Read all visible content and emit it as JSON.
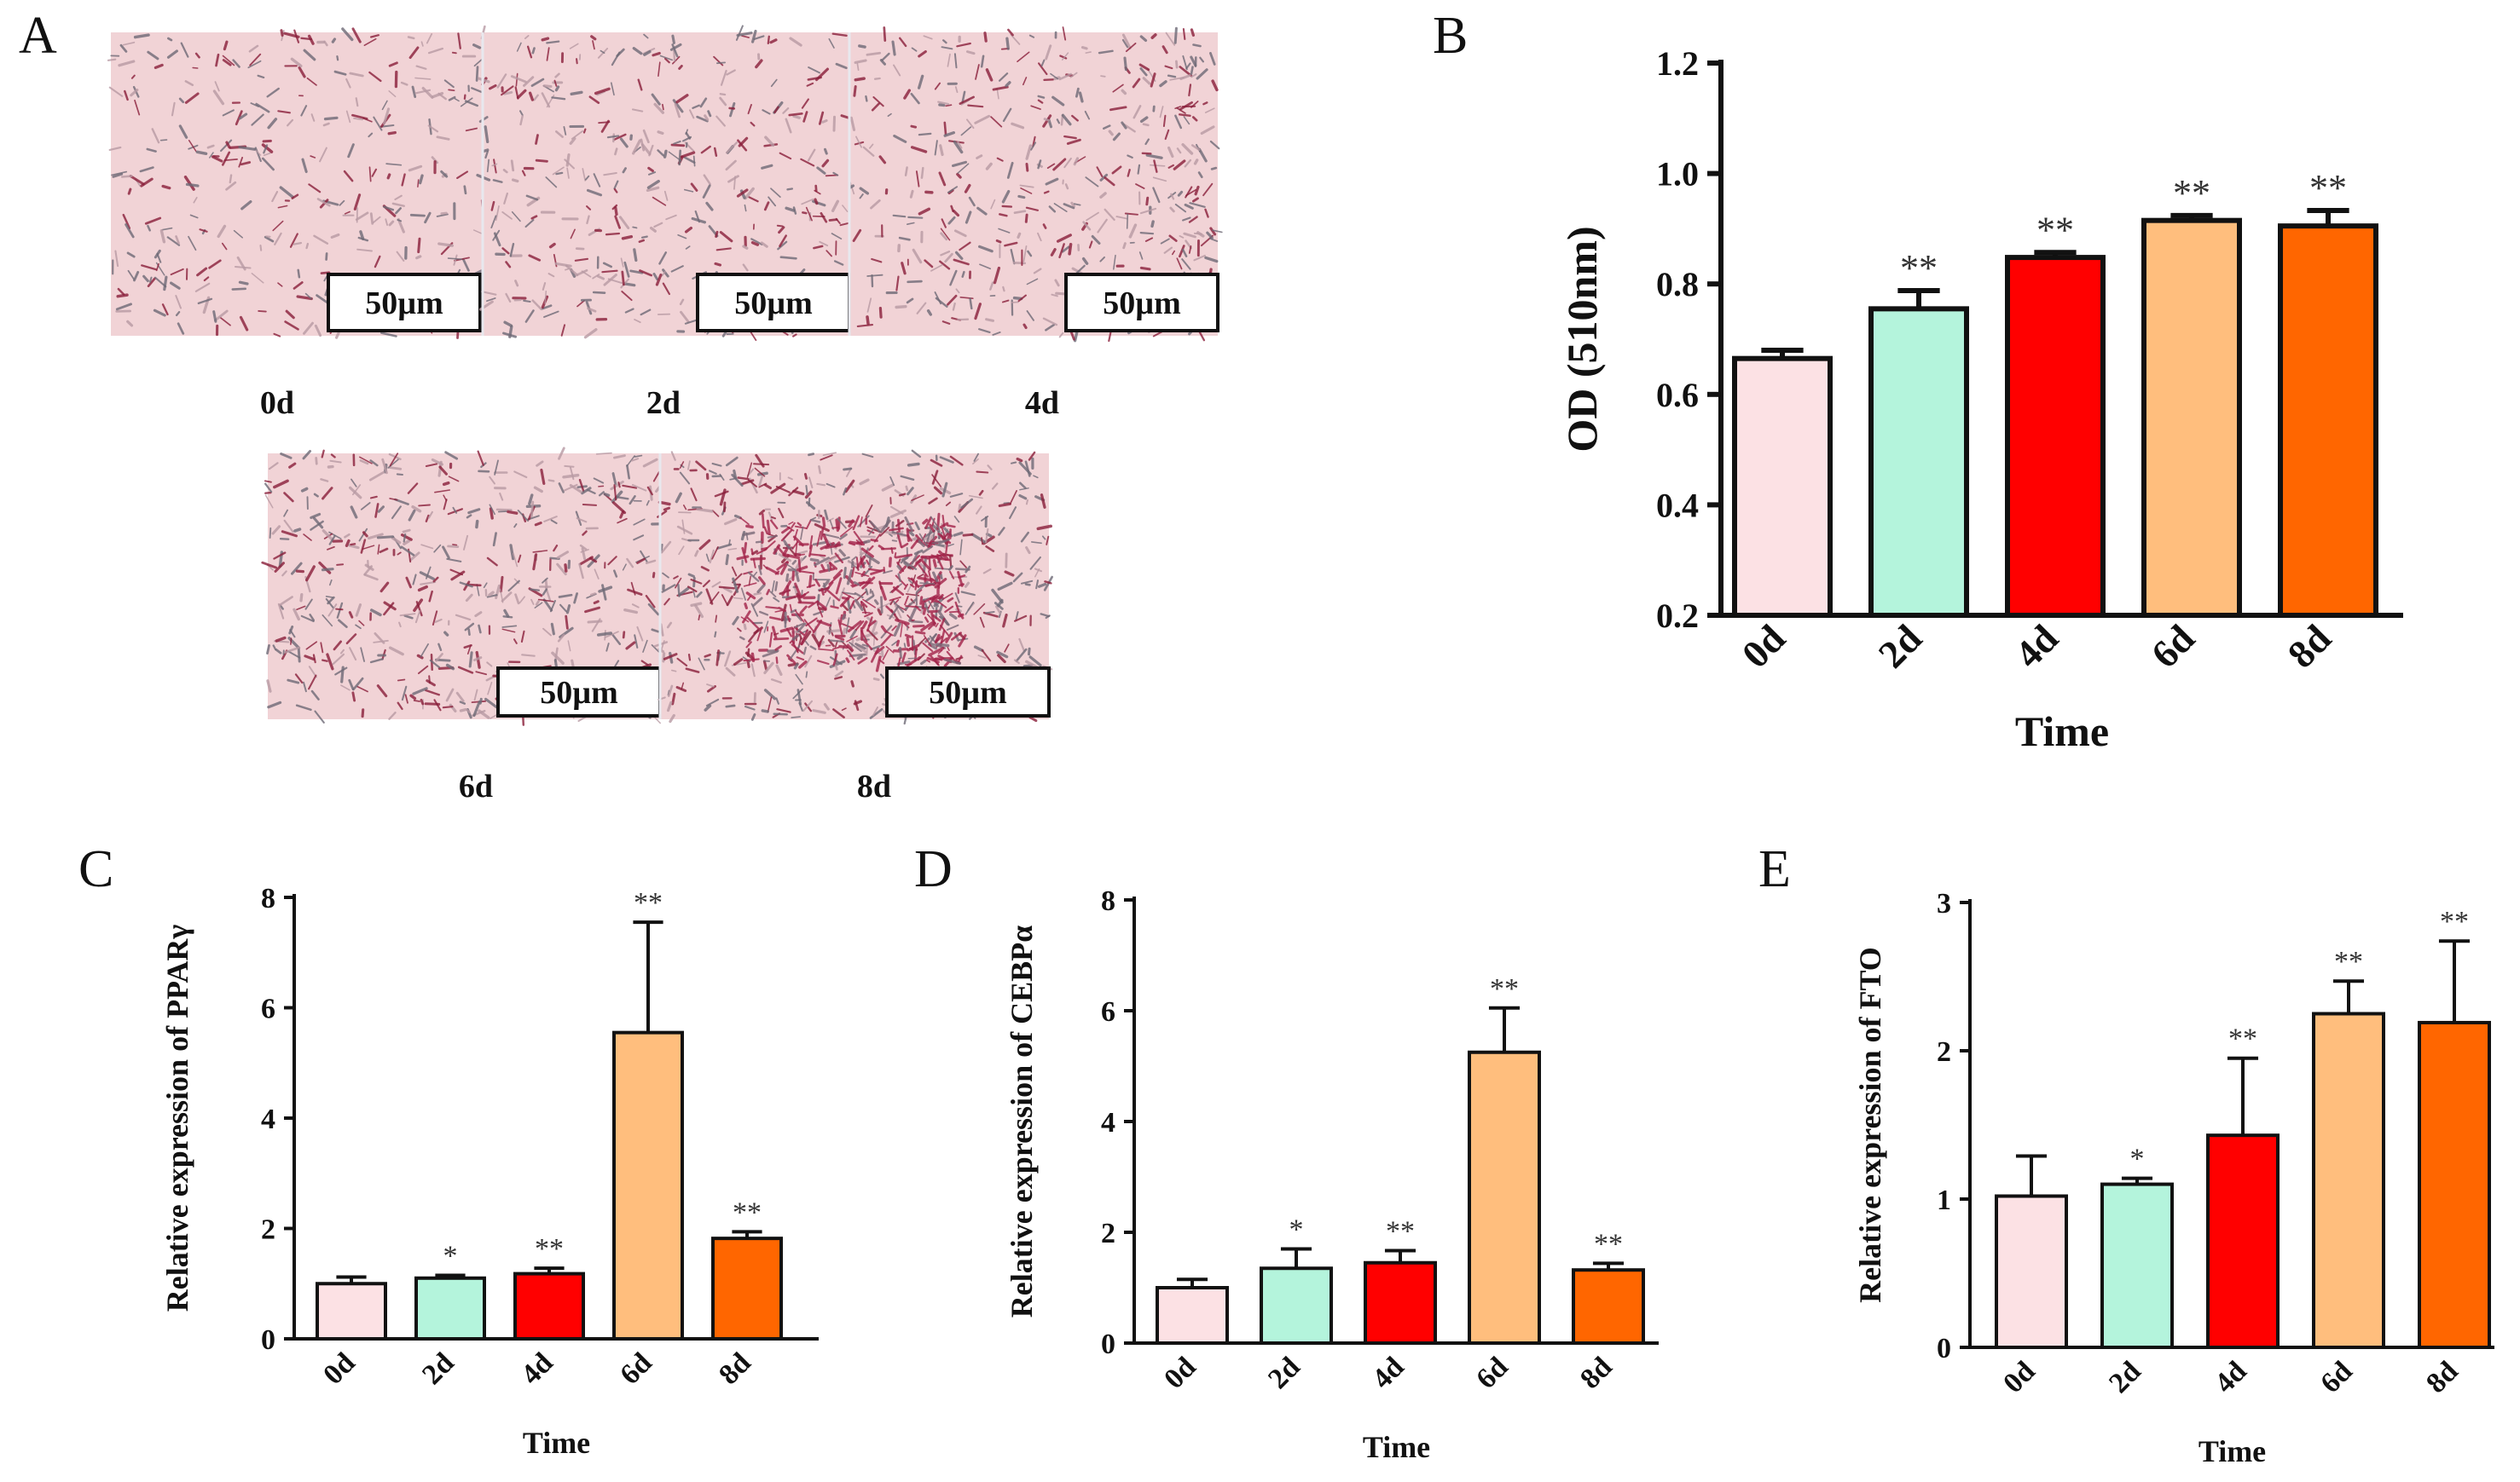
{
  "panels": {
    "a_letter": "A",
    "b_letter": "B",
    "c_letter": "C",
    "d_letter": "D",
    "e_letter": "E"
  },
  "micrographs": [
    {
      "day": "0d",
      "scale": "50µm"
    },
    {
      "day": "2d",
      "scale": "50µm"
    },
    {
      "day": "4d",
      "scale": "50µm"
    },
    {
      "day": "6d",
      "scale": "50µm"
    },
    {
      "day": "8d",
      "scale": "50µm"
    }
  ],
  "colors": {
    "0d": "#fce1e4",
    "2d": "#b4f4dc",
    "4d": "#ff0000",
    "6d": "#ffbe7d",
    "8d": "#ff6600",
    "stain_bg": "#f1d3d6",
    "stain_cell": "#8a1f3a"
  },
  "chart_data": [
    {
      "id": "B",
      "type": "bar",
      "categories": [
        "0d",
        "2d",
        "4d",
        "6d",
        "8d"
      ],
      "values": [
        0.665,
        0.755,
        0.848,
        0.915,
        0.905
      ],
      "errors": [
        0.015,
        0.033,
        0.009,
        0.009,
        0.028
      ],
      "significance": [
        "",
        "**",
        "**",
        "**",
        "**"
      ],
      "xlabel": "Time",
      "ylabel": "OD (510nm)",
      "ylim": [
        0.2,
        1.2
      ],
      "yticks": [
        "0.2",
        "0.4",
        "0.6",
        "0.8",
        "1.0",
        "1.2"
      ]
    },
    {
      "id": "C",
      "type": "bar",
      "categories": [
        "0d",
        "2d",
        "4d",
        "6d",
        "8d"
      ],
      "values": [
        1.0,
        1.1,
        1.18,
        5.55,
        1.82
      ],
      "errors": [
        0.12,
        0.05,
        0.1,
        2.0,
        0.12
      ],
      "significance": [
        "",
        "*",
        "**",
        "**",
        "**"
      ],
      "xlabel": "Time",
      "ylabel": "Relative expression of PPARγ",
      "ylim": [
        0,
        8
      ],
      "yticks": [
        "0",
        "2",
        "4",
        "6",
        "8"
      ]
    },
    {
      "id": "D",
      "type": "bar",
      "categories": [
        "0d",
        "2d",
        "4d",
        "6d",
        "8d"
      ],
      "values": [
        1.0,
        1.35,
        1.45,
        5.25,
        1.32
      ],
      "errors": [
        0.15,
        0.35,
        0.22,
        0.8,
        0.12
      ],
      "significance": [
        "",
        "*",
        "**",
        "**",
        "**"
      ],
      "xlabel": "Time",
      "ylabel": "Relative expression of CEBPα",
      "ylim": [
        0,
        8
      ],
      "yticks": [
        "0",
        "2",
        "4",
        "6",
        "8"
      ]
    },
    {
      "id": "E",
      "type": "bar",
      "categories": [
        "0d",
        "2d",
        "4d",
        "6d",
        "8d"
      ],
      "values": [
        1.02,
        1.1,
        1.43,
        2.25,
        2.19
      ],
      "errors": [
        0.27,
        0.04,
        0.52,
        0.22,
        0.55
      ],
      "significance": [
        "",
        "*",
        "**",
        "**",
        "**"
      ],
      "xlabel": "Time",
      "ylabel": "Relative expression of FTO",
      "ylim": [
        0,
        3
      ],
      "yticks": [
        "0",
        "1",
        "2",
        "3"
      ]
    }
  ]
}
